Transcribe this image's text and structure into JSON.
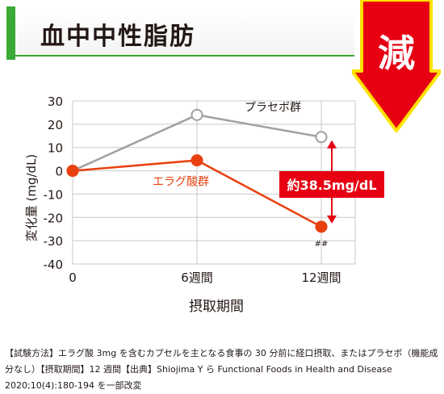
{
  "title": "血中中性脂肪",
  "badge_text": "減",
  "colors": {
    "accent_green": "#3aa935",
    "ellagic": "#e8400f",
    "placebo": "#a0a0a0",
    "callout": "#e60012",
    "arrow_yellow": "#ffe100"
  },
  "callout_text": "約38.5mg/dL",
  "significance_mark": "##",
  "footnote": "【試験方法】エラグ酸 3mg を含むカプセルを主となる食事の 30 分前に経口摂取、またはプラセボ（機能成分なし）【摂取期間】12 週間【出典】Shiojima Y ら Functional Foods in Health and Disease 2020;10(4):180-194 を一部改変",
  "chart_data": {
    "type": "line",
    "categories": [
      "0",
      "6週間",
      "12週間"
    ],
    "x": [
      0,
      6,
      12
    ],
    "xlabel": "摂取期間",
    "ylabel": "変化量 (mg/dL)",
    "ylim": [
      -40,
      30
    ],
    "yticks": [
      30,
      20,
      10,
      0,
      -10,
      -20,
      -30,
      -40
    ],
    "grid": true,
    "series": [
      {
        "name": "プラセボ群",
        "values": [
          0,
          24,
          14.5
        ],
        "color": "#a0a0a0",
        "marker": "open-circle"
      },
      {
        "name": "エラグ酸群",
        "values": [
          0,
          4.5,
          -24
        ],
        "color": "#e8400f",
        "marker": "filled-circle"
      }
    ],
    "annotations": [
      "約38.5mg/dL",
      "##"
    ]
  }
}
